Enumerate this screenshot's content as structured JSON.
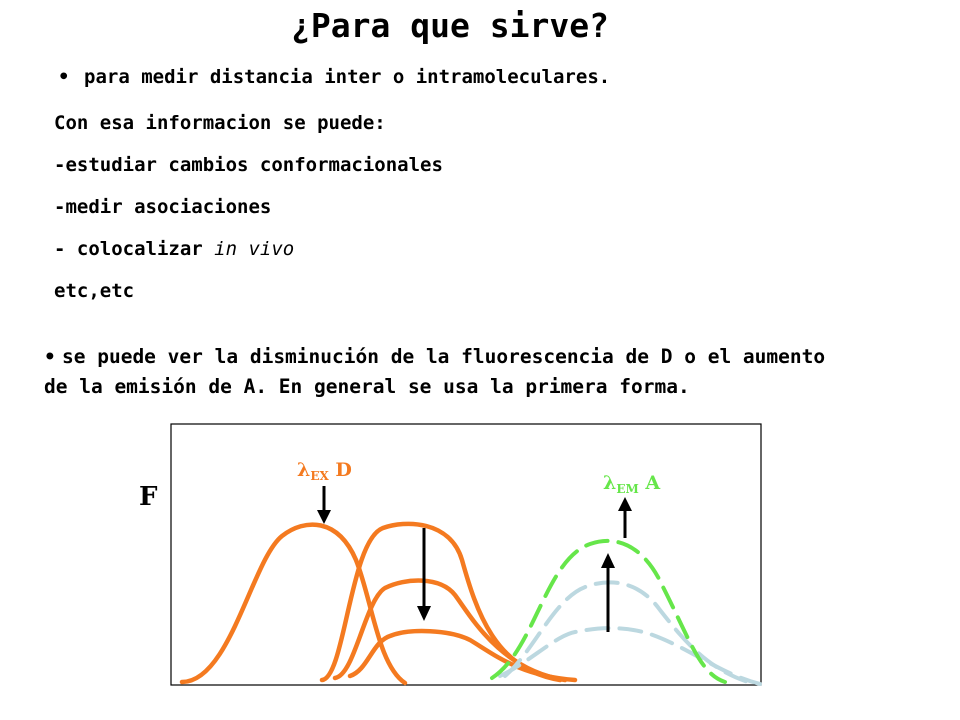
{
  "title": "¿Para que sirve?",
  "bullet1": {
    "symbol": "•",
    "text": "para medir distancia inter o intramoleculares."
  },
  "info_intro": "Con esa informacion se puede:",
  "items": [
    "-estudiar cambios conformacionales",
    "-medir asociaciones"
  ],
  "item_invivo": {
    "prefix": "- colocalizar ",
    "italic": "in vivo"
  },
  "etc": "etc,etc",
  "bullet2": {
    "symbol": "•",
    "line1": "se puede ver la disminución de la fluorescencia de D o el aumento",
    "line2": "de la emisión de A. En general se usa la primera forma."
  },
  "figure": {
    "axis_label": "F",
    "label_ex": {
      "greek": "λ",
      "sub": "EX",
      "suffix": " D"
    },
    "label_em": {
      "greek": "λ",
      "sub": "EM",
      "suffix": " A"
    },
    "colors": {
      "donor": "#f47a20",
      "acceptor_strong": "#66e64a",
      "acceptor_weak": "#bcd8e0",
      "frame": "#000000"
    }
  }
}
